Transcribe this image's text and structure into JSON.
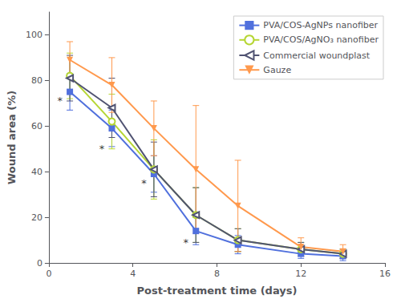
{
  "chart_data": {
    "type": "line",
    "xlabel": "Post-treatment time (days)",
    "ylabel": "Wound area (%)",
    "x": [
      1,
      3,
      5,
      7,
      9,
      12,
      14
    ],
    "series": [
      {
        "name": "PVA/COS-AgNPs nanofiber",
        "values": [
          75,
          59,
          39,
          14,
          8,
          4,
          3
        ],
        "errors": [
          8,
          8,
          8,
          6,
          4,
          2,
          2
        ],
        "marker": "square"
      },
      {
        "name": "PVA/COS/AgNO₃ nanofiber",
        "values": [
          82,
          62,
          41,
          21,
          10,
          6,
          4
        ],
        "errors": [
          10,
          12,
          13,
          12,
          5,
          3,
          2
        ],
        "marker": "circle-open"
      },
      {
        "name": "Commercial woundplast",
        "values": [
          81,
          68,
          41,
          21,
          10,
          6,
          4
        ],
        "errors": [
          10,
          13,
          12,
          12,
          5,
          3,
          2
        ],
        "marker": "triangle-left-open"
      },
      {
        "name": "Gauze",
        "values": [
          89,
          78,
          59,
          41,
          25,
          7,
          5
        ],
        "errors": [
          8,
          12,
          12,
          28,
          20,
          4,
          3
        ],
        "marker": "triangle-down"
      }
    ],
    "annotations": [
      {
        "x": 0.65,
        "y": 71,
        "text": "*"
      },
      {
        "x": 2.65,
        "y": 50,
        "text": "*"
      },
      {
        "x": 4.65,
        "y": 35,
        "text": "*"
      },
      {
        "x": 6.65,
        "y": 9,
        "text": "*"
      }
    ],
    "xlim": [
      0,
      16
    ],
    "ylim": [
      0,
      110
    ],
    "xticks": [
      0,
      4,
      8,
      12,
      16
    ],
    "yticks": [
      0,
      20,
      40,
      60,
      80,
      100
    ],
    "grid": false,
    "legend": "upper right"
  }
}
